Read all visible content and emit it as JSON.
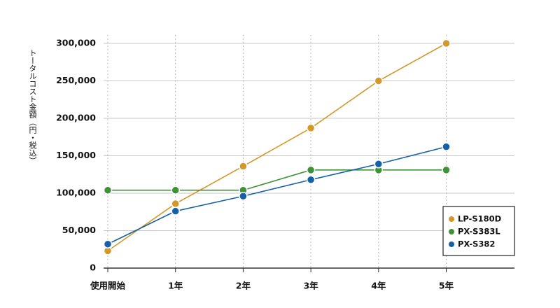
{
  "chart_data": {
    "type": "line",
    "y_label": "トータルコスト金額（円・税込）",
    "categories": [
      "使用開始",
      "1年",
      "2年",
      "3年",
      "4年",
      "5年"
    ],
    "series": [
      {
        "name": "LP-S180D",
        "color": "#d4972a",
        "values": [
          23000,
          86000,
          136000,
          187000,
          250000,
          300000
        ]
      },
      {
        "name": "PX-S383L",
        "color": "#3f923a",
        "values": [
          104000,
          104000,
          104000,
          131000,
          131000,
          131000
        ]
      },
      {
        "name": "PX-S382",
        "color": "#1560a8",
        "values": [
          32000,
          76000,
          96000,
          118000,
          139000,
          162000
        ]
      }
    ],
    "ylim": [
      0,
      300000
    ],
    "yticks": [
      0,
      {
        "value": 50000,
        "label": "50,000"
      },
      {
        "value": 100000,
        "label": "100,000"
      },
      {
        "value": 150000,
        "label": "150,000"
      },
      {
        "value": 200000,
        "label": "200,000"
      },
      {
        "value": 250000,
        "label": "250,000"
      },
      {
        "value": 300000,
        "label": "300,000"
      }
    ],
    "grid": true,
    "legend": "lower right"
  }
}
